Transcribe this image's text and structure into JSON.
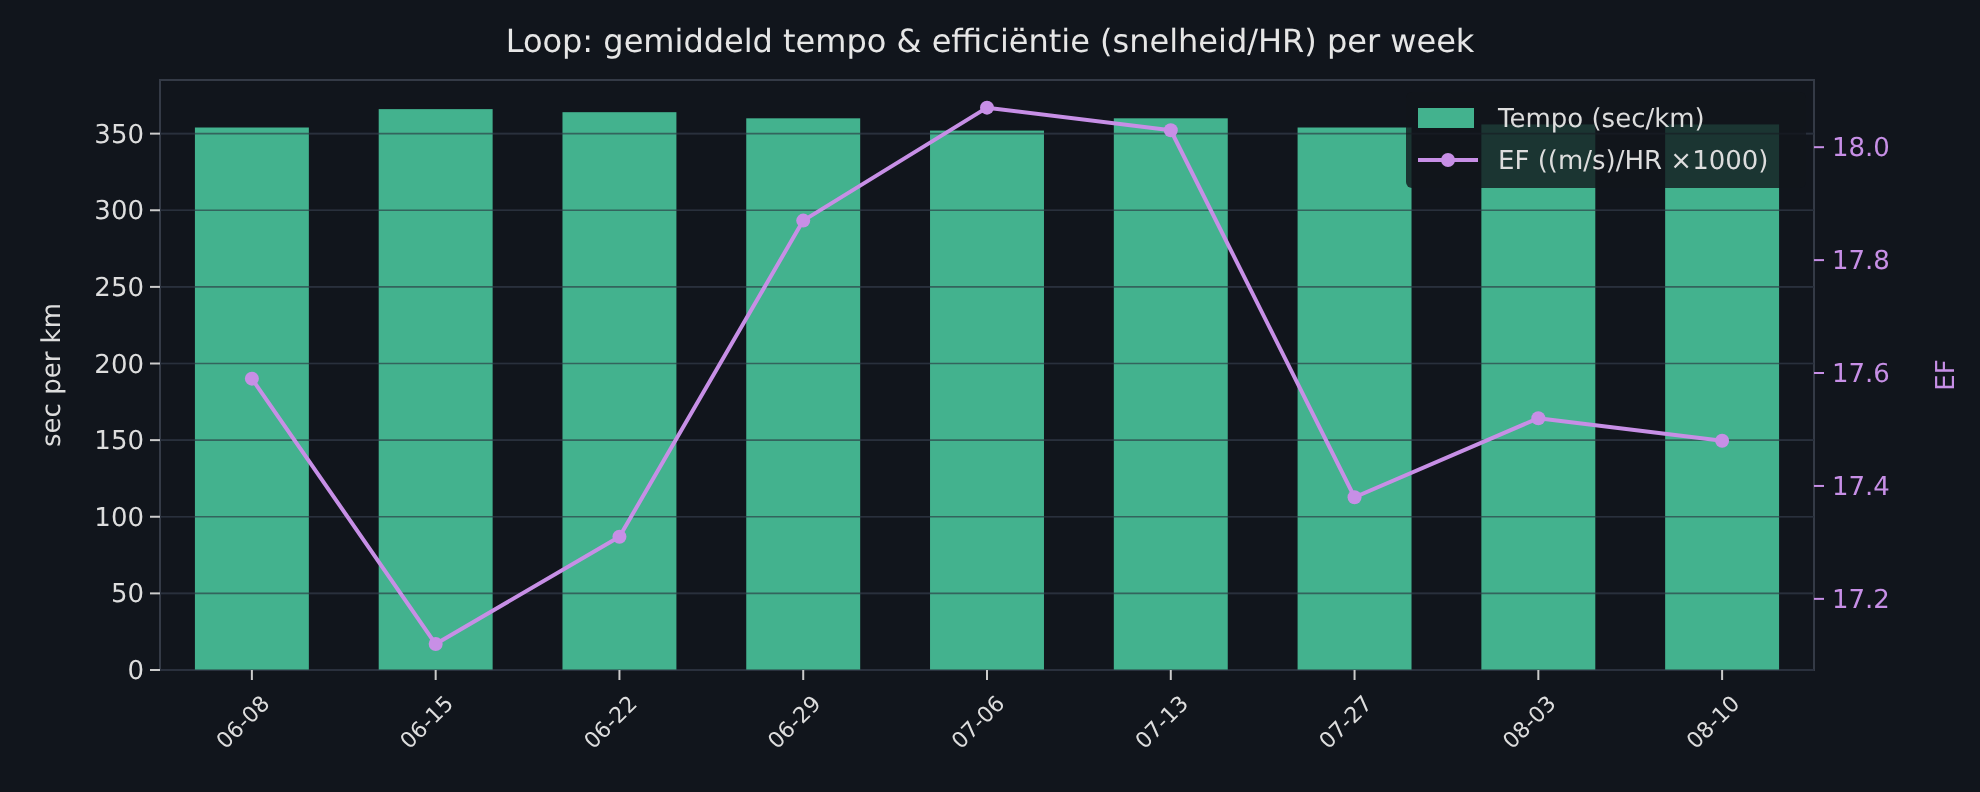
{
  "chart_data": {
    "type": "bar",
    "title": "Loop: gemiddeld tempo & efficiëntie (snelheid/HR) per week",
    "ylabel": "sec per km",
    "y2label": "EF",
    "categories": [
      "06-08",
      "06-15",
      "06-22",
      "06-29",
      "07-06",
      "07-13",
      "07-27",
      "08-03",
      "08-10"
    ],
    "series": [
      {
        "name": "Tempo (sec/km)",
        "color": "#43b28e",
        "values": [
          354,
          366,
          364,
          360,
          352,
          360,
          354,
          356,
          356
        ]
      },
      {
        "name": "EF ((m/s)/HR ×1000)",
        "type": "line",
        "axis": "y2",
        "color": "#c78fe6",
        "marker": "circle",
        "values": [
          17.59,
          17.12,
          17.31,
          17.87,
          18.07,
          18.03,
          17.38,
          17.52,
          17.48
        ]
      }
    ],
    "ylim": [
      0,
      385
    ],
    "yticks": [
      0,
      50,
      100,
      150,
      200,
      250,
      300,
      350
    ],
    "y2lim": [
      17.074,
      18.119
    ],
    "y2ticks": [
      {
        "value": 17.2,
        "label": "17.2"
      },
      {
        "value": 17.4,
        "label": "17.4"
      },
      {
        "value": 17.6,
        "label": "17.6"
      },
      {
        "value": 17.8,
        "label": "17.8"
      },
      {
        "value": 18.0,
        "label": "18.0"
      }
    ],
    "grid": "y",
    "legend": "top right"
  }
}
